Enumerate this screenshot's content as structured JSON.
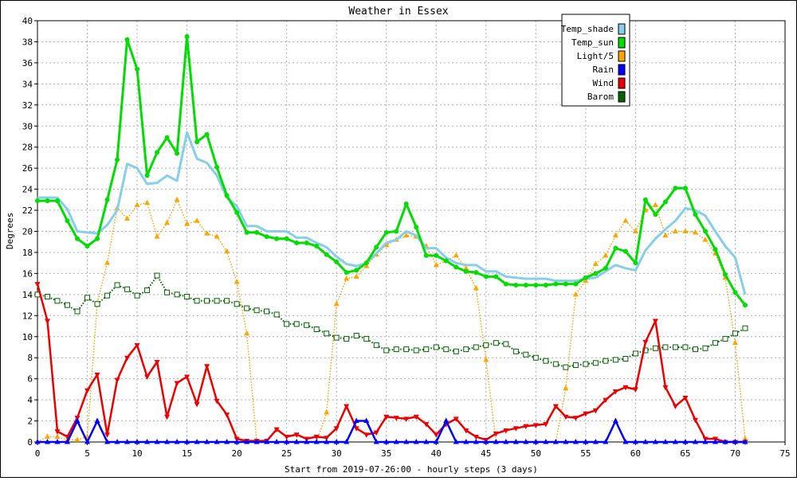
{
  "chart_data": {
    "type": "line",
    "title": "Weather in Essex",
    "xlabel": "Start from 2019-07-26:00 - hourly steps (3 days)",
    "ylabel": "Degrees",
    "xlim": [
      0,
      75
    ],
    "ylim": [
      0,
      40
    ],
    "x_ticks": [
      0,
      5,
      10,
      15,
      20,
      25,
      30,
      35,
      40,
      45,
      50,
      55,
      60,
      65,
      70,
      75
    ],
    "y_ticks": [
      0,
      2,
      4,
      6,
      8,
      10,
      12,
      14,
      16,
      18,
      20,
      22,
      24,
      26,
      28,
      30,
      32,
      34,
      36,
      38,
      40
    ],
    "grid": true,
    "legend_position": "top-right",
    "x": [
      0,
      1,
      2,
      3,
      4,
      5,
      6,
      7,
      8,
      9,
      10,
      11,
      12,
      13,
      14,
      15,
      16,
      17,
      18,
      19,
      20,
      21,
      22,
      23,
      24,
      25,
      26,
      27,
      28,
      29,
      30,
      31,
      32,
      33,
      34,
      35,
      36,
      37,
      38,
      39,
      40,
      41,
      42,
      43,
      44,
      45,
      46,
      47,
      48,
      49,
      50,
      51,
      52,
      53,
      54,
      55,
      56,
      57,
      58,
      59,
      60,
      61,
      62,
      63,
      64,
      65,
      66,
      67,
      68,
      69,
      70,
      71
    ],
    "series": [
      {
        "name": "Temp_shade",
        "color": "#87ceeb",
        "marker": "none",
        "dash": "solid",
        "width": 3,
        "values": [
          23.2,
          23.2,
          23.2,
          22.1,
          20.0,
          19.9,
          19.8,
          20.6,
          22.0,
          26.4,
          26.0,
          24.5,
          24.6,
          25.3,
          24.8,
          29.4,
          26.9,
          26.5,
          25.3,
          23.2,
          22.4,
          20.5,
          20.5,
          20.0,
          20.0,
          20.0,
          19.4,
          19.4,
          18.9,
          18.5,
          17.6,
          16.9,
          16.7,
          17.0,
          17.9,
          18.9,
          19.2,
          20.0,
          19.6,
          18.4,
          18.4,
          17.5,
          17.0,
          16.8,
          16.8,
          16.2,
          16.2,
          15.7,
          15.6,
          15.5,
          15.5,
          15.5,
          15.3,
          15.3,
          15.3,
          15.5,
          15.6,
          16.2,
          16.8,
          16.5,
          16.3,
          18.2,
          19.3,
          20.2,
          21.0,
          22.2,
          22.0,
          21.5,
          20.0,
          18.6,
          17.5,
          14.0
        ]
      },
      {
        "name": "Temp_sun",
        "color": "#00dd00",
        "marker": "circle",
        "dash": "solid",
        "width": 3,
        "values": [
          22.9,
          22.9,
          22.9,
          21.0,
          19.3,
          18.6,
          19.3,
          23.0,
          26.8,
          38.2,
          35.4,
          25.3,
          27.5,
          28.9,
          27.4,
          38.5,
          28.5,
          29.2,
          26.1,
          23.4,
          21.8,
          19.9,
          19.9,
          19.5,
          19.3,
          19.3,
          18.9,
          18.9,
          18.6,
          17.8,
          17.1,
          16.1,
          16.3,
          17.0,
          18.5,
          19.9,
          20.0,
          22.6,
          20.4,
          17.7,
          17.7,
          17.2,
          16.6,
          16.2,
          16.1,
          15.7,
          15.7,
          15.0,
          14.9,
          14.9,
          14.9,
          14.9,
          15.0,
          15.0,
          15.0,
          15.6,
          16.0,
          16.5,
          18.4,
          18.1,
          17.0,
          23.0,
          21.6,
          22.8,
          24.1,
          24.1,
          21.6,
          20.0,
          18.3,
          15.9,
          14.2,
          13.0
        ]
      },
      {
        "name": "Light/5",
        "color": "#ffa500",
        "marker": "triangle",
        "dash": "dotted",
        "width": 1.5,
        "values": [
          0,
          0.5,
          0.5,
          0.2,
          0.2,
          0.5,
          13.2,
          17.0,
          22.2,
          21.2,
          22.5,
          22.7,
          19.5,
          20.8,
          23.0,
          20.7,
          21.0,
          19.8,
          19.5,
          18.1,
          15.2,
          10.3,
          0,
          0,
          0,
          0,
          0,
          0,
          0,
          2.8,
          13.1,
          15.5,
          15.7,
          16.7,
          17.8,
          18.7,
          19.2,
          19.6,
          19.5,
          18.6,
          16.8,
          17.2,
          17.7,
          16.5,
          14.6,
          7.8,
          0,
          0,
          0,
          0,
          0,
          0,
          0,
          5.1,
          14.0,
          15.3,
          16.9,
          17.7,
          19.6,
          21.0,
          20.0,
          22.0,
          22.5,
          19.6,
          20.0,
          20.0,
          19.9,
          19.2,
          17.9,
          15.6,
          9.4,
          0.3
        ]
      },
      {
        "name": "Rain",
        "color": "#0000ff",
        "marker": "triangle",
        "dash": "solid",
        "width": 2.5,
        "values": [
          0,
          0,
          0,
          0,
          2.0,
          0,
          2.0,
          0,
          0,
          0,
          0,
          0,
          0,
          0,
          0,
          0,
          0,
          0,
          0,
          0,
          0,
          0,
          0,
          0,
          0,
          0,
          0,
          0,
          0,
          0,
          0,
          0,
          2.0,
          2.0,
          0,
          0,
          0,
          0,
          0,
          0,
          0,
          2.0,
          0,
          0,
          0,
          0,
          0,
          0,
          0,
          0,
          0,
          0,
          0,
          0,
          0,
          0,
          0,
          0,
          2.0,
          0,
          0,
          0,
          0,
          0,
          0,
          0,
          0,
          0,
          0,
          0,
          0,
          0
        ]
      },
      {
        "name": "Wind",
        "color": "#ee0000",
        "marker": "triangle-down",
        "dash": "solid",
        "width": 2.5,
        "values": [
          15.0,
          11.5,
          1.0,
          0.5,
          2.3,
          4.9,
          6.4,
          0.7,
          5.9,
          8.0,
          9.2,
          6.2,
          7.6,
          2.4,
          5.6,
          6.2,
          3.6,
          7.2,
          3.9,
          2.6,
          0.3,
          0.1,
          0.1,
          0.1,
          1.2,
          0.5,
          0.7,
          0.3,
          0.5,
          0.4,
          1.3,
          3.4,
          1.3,
          0.7,
          0.9,
          2.4,
          2.3,
          2.2,
          2.4,
          1.7,
          0.7,
          1.7,
          2.2,
          1.1,
          0.5,
          0.2,
          0.8,
          1.1,
          1.3,
          1.5,
          1.6,
          1.7,
          3.4,
          2.4,
          2.3,
          2.7,
          3.0,
          4.0,
          4.8,
          5.2,
          5.0,
          9.5,
          11.5,
          5.2,
          3.4,
          4.2,
          2.1,
          0.3,
          0.3,
          0,
          0,
          0
        ]
      },
      {
        "name": "Barom",
        "color": "#006400",
        "marker": "square",
        "dash": "dotted",
        "width": 2,
        "values": [
          14.0,
          13.8,
          13.4,
          13.0,
          12.4,
          13.7,
          13.1,
          13.9,
          14.9,
          14.5,
          13.9,
          14.4,
          15.8,
          14.2,
          14.0,
          13.8,
          13.4,
          13.4,
          13.4,
          13.4,
          13.1,
          12.7,
          12.5,
          12.4,
          12.1,
          11.2,
          11.2,
          11.1,
          10.7,
          10.3,
          9.9,
          9.8,
          10.1,
          9.8,
          9.2,
          8.7,
          8.8,
          8.8,
          8.7,
          8.8,
          9.0,
          8.8,
          8.6,
          8.8,
          9.0,
          9.2,
          9.4,
          9.3,
          8.6,
          8.3,
          8.0,
          7.7,
          7.4,
          7.1,
          7.3,
          7.4,
          7.5,
          7.7,
          7.8,
          7.9,
          8.4,
          8.7,
          8.9,
          9.0,
          9.0,
          9.0,
          8.8,
          8.9,
          9.4,
          9.8,
          10.3,
          10.8
        ]
      }
    ]
  }
}
